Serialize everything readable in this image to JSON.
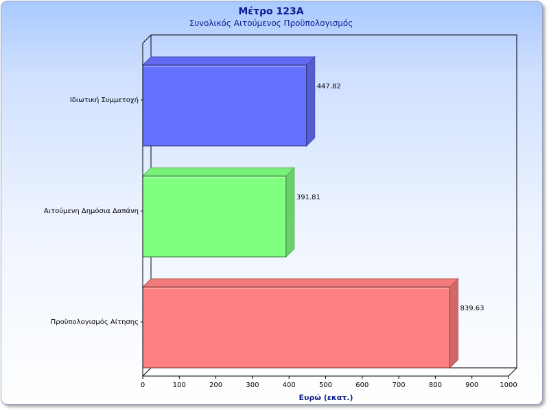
{
  "chart_data": {
    "type": "bar",
    "orientation": "horizontal",
    "title": "Μέτρο 123Α",
    "subtitle": "Συνολικός Αιτούμενος Προϋπολογισμός",
    "xlabel": "Ευρώ (εκατ.)",
    "ylabel": "",
    "xlim": [
      0,
      1000
    ],
    "ticks": [
      "0",
      "100",
      "200",
      "300",
      "400",
      "500",
      "600",
      "700",
      "800",
      "900",
      "1000"
    ],
    "categories": [
      "Ιδιωτική Συμμετοχή",
      "Αιτούμενη Δημόσια Δαπάνη",
      "Προϋπολογισμός Αίτησης"
    ],
    "values": [
      447.82,
      391.81,
      839.63
    ],
    "value_labels": [
      "447.82",
      "391.81",
      "839.63"
    ],
    "colors": [
      "#6670ff",
      "#80ff80",
      "#ff8080"
    ],
    "grid": false,
    "legend": "none",
    "style": "3d"
  }
}
